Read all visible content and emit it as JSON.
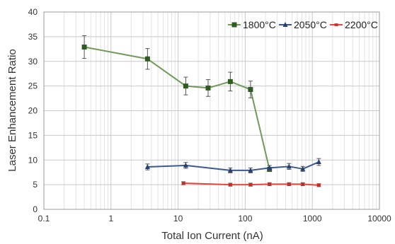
{
  "chart_data": {
    "type": "line",
    "xscale": "log",
    "xlim": [
      0.1,
      10000
    ],
    "ylim": [
      0,
      40
    ],
    "xlabel": "Total Ion Current (nA)",
    "ylabel": "Laser Enhancement Ratio",
    "x_ticks": [
      "0.1",
      "1",
      "10",
      "100",
      "1000",
      "10000"
    ],
    "y_ticks": [
      "0",
      "5",
      "10",
      "15",
      "20",
      "25",
      "30",
      "35",
      "40"
    ],
    "grid": true,
    "legend_position": "top-right",
    "series": [
      {
        "name": "1800°C",
        "color": "#6f9a5a",
        "marker": "square",
        "marker_color": "#2f5a22",
        "x": [
          0.4,
          3.5,
          13,
          28,
          60,
          120,
          230
        ],
        "y": [
          32.9,
          30.5,
          25.0,
          24.6,
          25.9,
          24.3,
          8.1
        ],
        "err": [
          2.3,
          2.1,
          1.8,
          1.7,
          1.9,
          1.7,
          0.4
        ]
      },
      {
        "name": "2050°C",
        "color": "#3a5a90",
        "marker": "triangle",
        "marker_color": "#243f70",
        "x": [
          3.5,
          13,
          60,
          120,
          230,
          450,
          720,
          1250
        ],
        "y": [
          8.6,
          8.9,
          7.9,
          7.9,
          8.4,
          8.7,
          8.2,
          9.6
        ],
        "err": [
          0.6,
          0.6,
          0.5,
          0.5,
          0.5,
          0.6,
          0.5,
          0.7
        ]
      },
      {
        "name": "2200°C",
        "color": "#e8453c",
        "marker": "circle",
        "marker_color": "#d22a22",
        "x": [
          12,
          60,
          120,
          230,
          450,
          720,
          1250
        ],
        "y": [
          5.3,
          5.0,
          5.0,
          5.1,
          5.1,
          5.1,
          4.9
        ],
        "err": [
          0.3,
          0.3,
          0.3,
          0.3,
          0.3,
          0.3,
          0.3
        ]
      }
    ]
  }
}
